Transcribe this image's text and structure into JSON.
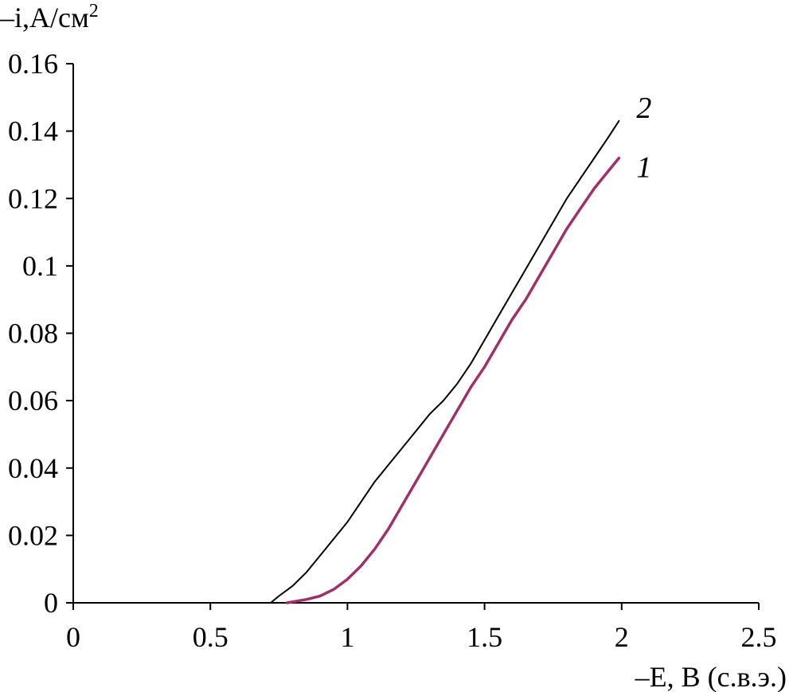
{
  "chart_data": {
    "type": "line",
    "title": "",
    "xlabel": "–E, В (с.в.э.)",
    "ylabel_main": "–i,А/см",
    "ylabel_superscript": "2",
    "xlim": [
      0,
      2.5
    ],
    "ylim": [
      0,
      0.16
    ],
    "x_ticks": [
      "0",
      "0.5",
      "1",
      "1.5",
      "2",
      "2.5"
    ],
    "y_ticks": [
      "0",
      "0.02",
      "0.04",
      "0.06",
      "0.08",
      "0.1",
      "0.12",
      "0.14",
      "0.16"
    ],
    "grid": false,
    "legend": "none",
    "series": [
      {
        "name": "1",
        "color": "#a0306a",
        "x": [
          0.78,
          0.85,
          0.9,
          0.95,
          1.0,
          1.05,
          1.1,
          1.15,
          1.2,
          1.25,
          1.3,
          1.35,
          1.4,
          1.45,
          1.5,
          1.55,
          1.6,
          1.65,
          1.7,
          1.75,
          1.8,
          1.85,
          1.9,
          1.95,
          1.99
        ],
        "y": [
          0.0,
          0.001,
          0.002,
          0.004,
          0.007,
          0.011,
          0.016,
          0.022,
          0.029,
          0.036,
          0.043,
          0.05,
          0.057,
          0.064,
          0.07,
          0.077,
          0.084,
          0.09,
          0.097,
          0.104,
          0.111,
          0.117,
          0.123,
          0.128,
          0.132
        ]
      },
      {
        "name": "2",
        "color": "#000000",
        "x": [
          0.72,
          0.75,
          0.8,
          0.85,
          0.9,
          0.95,
          1.0,
          1.05,
          1.1,
          1.15,
          1.2,
          1.25,
          1.3,
          1.35,
          1.4,
          1.45,
          1.5,
          1.55,
          1.6,
          1.65,
          1.7,
          1.75,
          1.8,
          1.85,
          1.9,
          1.95,
          1.99
        ],
        "y": [
          0.0,
          0.002,
          0.005,
          0.009,
          0.014,
          0.019,
          0.024,
          0.03,
          0.036,
          0.041,
          0.046,
          0.051,
          0.056,
          0.06,
          0.065,
          0.071,
          0.078,
          0.085,
          0.092,
          0.099,
          0.106,
          0.113,
          0.12,
          0.126,
          0.132,
          0.138,
          0.143
        ]
      }
    ]
  }
}
